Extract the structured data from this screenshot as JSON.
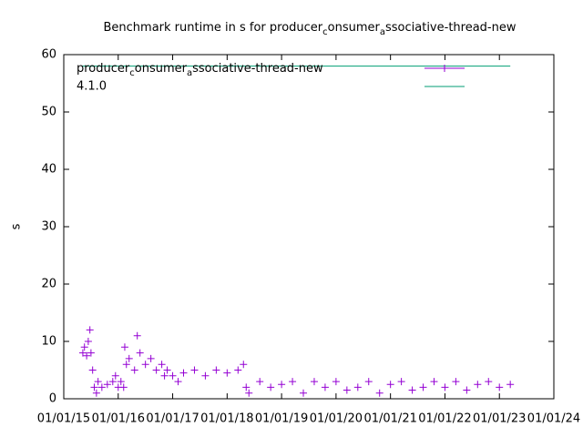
{
  "chart_data": {
    "type": "scatter",
    "title": [
      "Benchmark runtime in s for producer",
      "c",
      "onsumer",
      "a",
      "ssociative-thread-new"
    ],
    "y_label": "s",
    "xlim": [
      2015,
      2024
    ],
    "xticks": [
      {
        "value": 2015,
        "label": "01/01/15"
      },
      {
        "value": 2016,
        "label": "01/01/16"
      },
      {
        "value": 2017,
        "label": "01/01/17"
      },
      {
        "value": 2018,
        "label": "01/01/18"
      },
      {
        "value": 2019,
        "label": "01/01/19"
      },
      {
        "value": 2020,
        "label": "01/01/20"
      },
      {
        "value": 2021,
        "label": "01/01/21"
      },
      {
        "value": 2022,
        "label": "01/01/22"
      },
      {
        "value": 2023,
        "label": "01/01/23"
      },
      {
        "value": 2024,
        "label": "01/01/24"
      }
    ],
    "ylim": [
      0,
      60
    ],
    "yticks": [
      0,
      10,
      20,
      30,
      40,
      50,
      60
    ],
    "grid": false,
    "series": [
      {
        "name": [
          "producer",
          "c",
          "onsumer",
          "a",
          "ssociative-thread-new"
        ],
        "color": "#9400d3",
        "marker": "plus",
        "x": [
          2015.35,
          2015.38,
          2015.42,
          2015.45,
          2015.48,
          2015.5,
          2015.53,
          2015.56,
          2015.6,
          2015.63,
          2015.7,
          2015.8,
          2015.9,
          2015.95,
          2016.0,
          2016.05,
          2016.1,
          2016.12,
          2016.15,
          2016.2,
          2016.3,
          2016.35,
          2016.4,
          2016.5,
          2016.6,
          2016.7,
          2016.8,
          2016.85,
          2016.9,
          2017.0,
          2017.1,
          2017.2,
          2017.4,
          2017.6,
          2017.8,
          2018.0,
          2018.2,
          2018.3,
          2018.35,
          2018.4,
          2018.6,
          2018.8,
          2019.0,
          2019.2,
          2019.4,
          2019.6,
          2019.8,
          2020.0,
          2020.2,
          2020.4,
          2020.6,
          2020.8,
          2021.0,
          2021.2,
          2021.4,
          2021.6,
          2021.8,
          2022.0,
          2022.2,
          2022.4,
          2022.6,
          2022.8,
          2023.0,
          2023.2
        ],
        "values": [
          8,
          9,
          7.5,
          10,
          12,
          8,
          5,
          2,
          1,
          3,
          2,
          2.5,
          3,
          4,
          2,
          3,
          2,
          9,
          6,
          7,
          5,
          11,
          8,
          6,
          7,
          5,
          6,
          4,
          5,
          4,
          3,
          4.5,
          5,
          4,
          5,
          4.5,
          5,
          6,
          2,
          1,
          3,
          2,
          2.5,
          3,
          1,
          3,
          2,
          3,
          1.5,
          2,
          3,
          1,
          2.5,
          3,
          1.5,
          2,
          3,
          2,
          3,
          1.5,
          2.5,
          3,
          2,
          2.5
        ]
      },
      {
        "name": "4.1.0",
        "color": "#009e73",
        "marker": "line",
        "x": [
          2015.33,
          2023.2
        ],
        "values": [
          58,
          58
        ]
      }
    ]
  }
}
